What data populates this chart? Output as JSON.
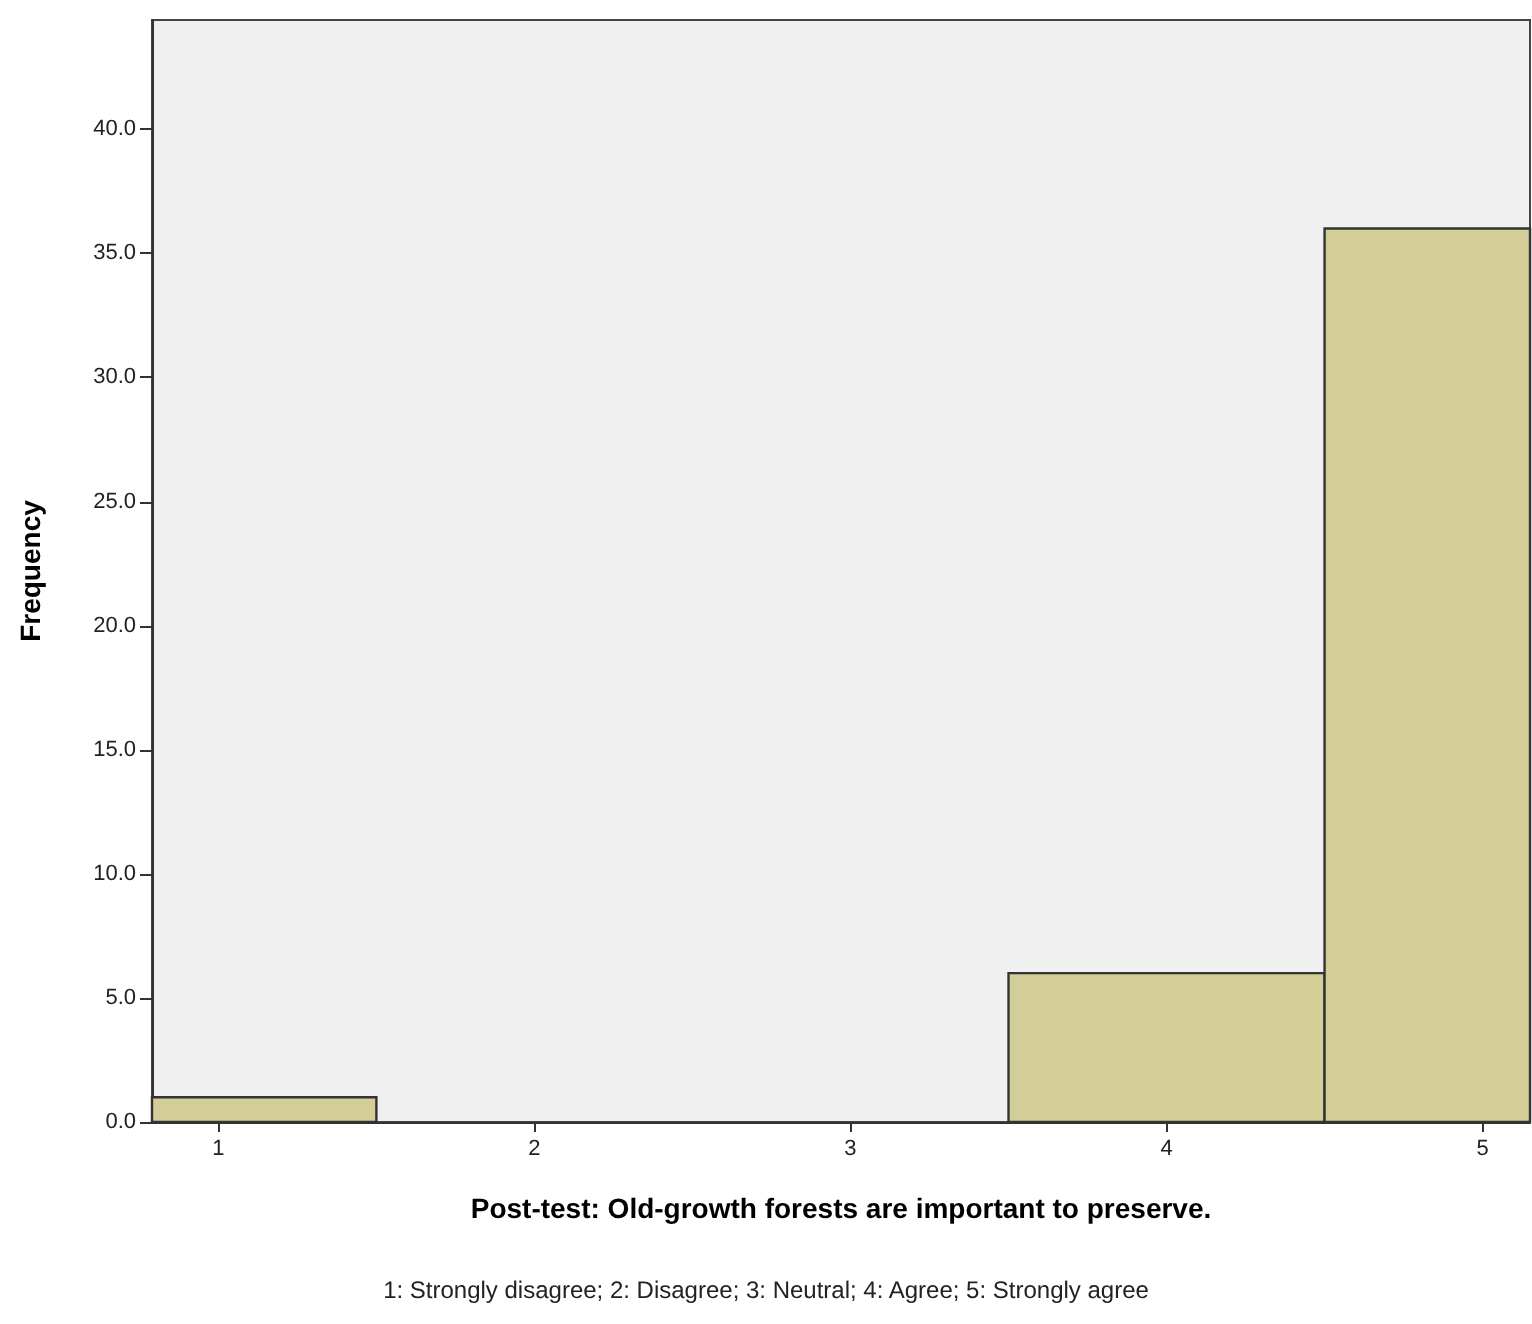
{
  "chart_data": {
    "type": "histogram",
    "xlabel": "Post-test: Old-growth forests are important to preserve.",
    "ylabel": "Frequency",
    "annotations": [
      "1: Strongly disagree; 2: Disagree; 3: Neutral; 4: Agree; 5: Strongly agree"
    ],
    "bins": [
      0.79,
      1.5,
      3.5,
      4.5,
      5.15
    ],
    "values": [
      1,
      0,
      6,
      36
    ],
    "color": "#d3ce97",
    "xlim": [
      0.79,
      5.15
    ],
    "xticks": [
      1,
      2,
      3,
      4,
      5
    ],
    "ylim": [
      0,
      44.4
    ],
    "yticks": [
      {
        "value": 0,
        "label": "0.0"
      },
      {
        "value": 5,
        "label": "5.0"
      },
      {
        "value": 10,
        "label": "10.0"
      },
      {
        "value": 15,
        "label": "15.0"
      },
      {
        "value": 20,
        "label": "20.0"
      },
      {
        "value": 25,
        "label": "25.0"
      },
      {
        "value": 30,
        "label": "30.0"
      },
      {
        "value": 35,
        "label": "35.0"
      },
      {
        "value": 40,
        "label": "40.0"
      }
    ],
    "grid": false
  }
}
